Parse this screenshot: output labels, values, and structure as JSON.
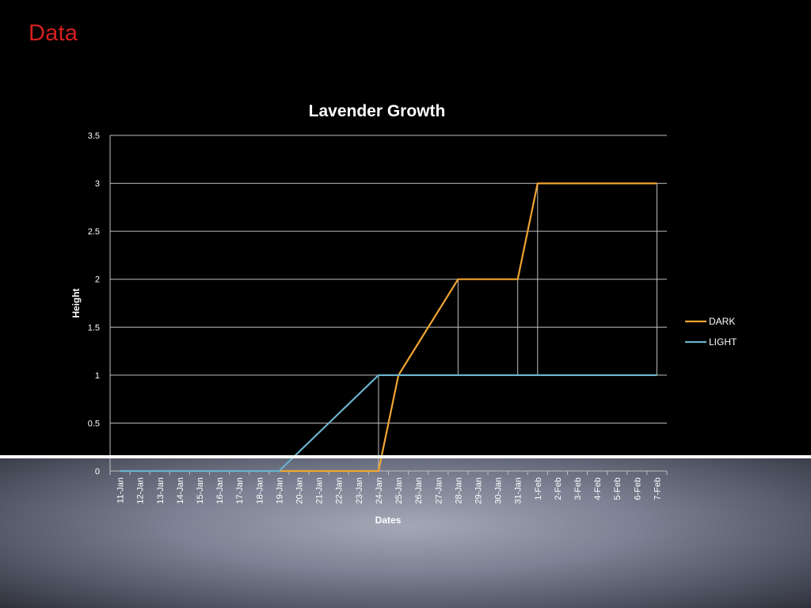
{
  "slide": {
    "title": "Data"
  },
  "colors": {
    "title": "#d61e1e",
    "dark_series": "#f0a530",
    "light_series": "#6ab2cc",
    "grid": "#bfbfbf",
    "background": "#000000"
  },
  "chart_data": {
    "type": "line",
    "title": "Lavender Growth",
    "xlabel": "Dates",
    "ylabel": "Height",
    "ylim": [
      0,
      3.5
    ],
    "yticks": [
      "0",
      "0.5",
      "1",
      "1.5",
      "2",
      "2.5",
      "3",
      "3.5"
    ],
    "grid": true,
    "legend_position": "right",
    "categories": [
      "11-Jan",
      "12-Jan",
      "13-Jan",
      "14-Jan",
      "15-Jan",
      "16-Jan",
      "17-Jan",
      "18-Jan",
      "19-Jan",
      "20-Jan",
      "21-Jan",
      "22-Jan",
      "23-Jan",
      "24-Jan",
      "25-Jan",
      "26-Jan",
      "27-Jan",
      "28-Jan",
      "29-Jan",
      "30-Jan",
      "31-Jan",
      "1-Feb",
      "2-Feb",
      "3-Feb",
      "4-Feb",
      "5-Feb",
      "6-Feb",
      "7-Feb"
    ],
    "series": [
      {
        "name": "DARK",
        "points": [
          [
            "19-Jan",
            0
          ],
          [
            "24-Jan",
            0
          ],
          [
            "25-Jan",
            1
          ],
          [
            "28-Jan",
            2
          ],
          [
            "31-Jan",
            2
          ],
          [
            "1-Feb",
            3
          ],
          [
            "7-Feb",
            3
          ]
        ]
      },
      {
        "name": "LIGHT",
        "points": [
          [
            "11-Jan",
            0
          ],
          [
            "19-Jan",
            0
          ],
          [
            "24-Jan",
            1
          ],
          [
            "7-Feb",
            1
          ]
        ]
      }
    ],
    "drop_lines": [
      "24-Jan",
      "28-Jan",
      "31-Jan",
      "1-Feb",
      "7-Feb"
    ]
  }
}
